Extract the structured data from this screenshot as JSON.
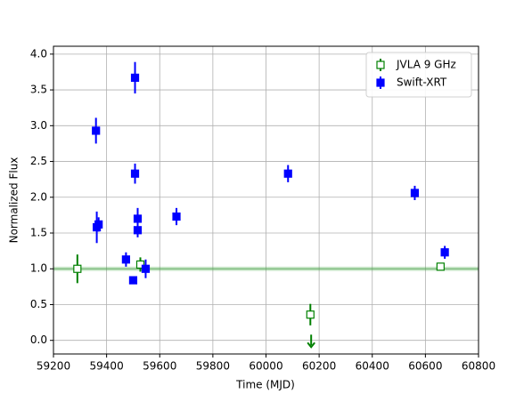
{
  "chart_data": {
    "type": "errorbar-scatter",
    "xlabel": "Time (MJD)",
    "ylabel": "Normalized Flux",
    "xlim": [
      59200,
      60800
    ],
    "ylim": [
      -0.19,
      4.11
    ],
    "xticks": [
      59200,
      59400,
      59600,
      59800,
      60000,
      60200,
      60400,
      60600,
      60800
    ],
    "yticks": [
      {
        "value": 0,
        "label": "0.0"
      },
      {
        "value": 0.5,
        "label": "0.5"
      },
      {
        "value": 1,
        "label": "1.0"
      },
      {
        "value": 1.5,
        "label": "1.5"
      },
      {
        "value": 2,
        "label": "2.0"
      },
      {
        "value": 2.5,
        "label": "2.5"
      },
      {
        "value": 3,
        "label": "3.0"
      },
      {
        "value": 3.5,
        "label": "3.5"
      },
      {
        "value": 4,
        "label": "4.0"
      }
    ],
    "grid": true,
    "legend_position": "upper right",
    "reference_line": 1.0,
    "reference_band": [
      0.97,
      1.03
    ],
    "reference_color": "#2ca02c",
    "series": [
      {
        "name": "JVLA 9 GHz",
        "color": "#008000",
        "marker": "open-square",
        "x": [
          59290,
          59527,
          60167,
          60170,
          60657
        ],
        "values": [
          1.0,
          1.06,
          0.36,
          0.08,
          1.03
        ],
        "errors": [
          0.2,
          0.1,
          0.15,
          0,
          0.05
        ],
        "upper_limit": [
          false,
          false,
          false,
          true,
          false
        ]
      },
      {
        "name": "Swift-XRT",
        "color": "#0000ff",
        "marker": "filled-square",
        "x": [
          59360,
          59363,
          59370,
          59473,
          59500,
          59507,
          59507,
          59517,
          59517,
          59547,
          59663,
          60083,
          60560,
          60673
        ],
        "values": [
          2.93,
          1.58,
          1.62,
          1.13,
          0.84,
          3.67,
          2.33,
          1.7,
          1.54,
          1.0,
          1.73,
          2.33,
          2.06,
          1.23
        ],
        "errors": [
          0.18,
          0.22,
          0.1,
          0.1,
          0.05,
          0.22,
          0.14,
          0.15,
          0.1,
          0.13,
          0.12,
          0.12,
          0.1,
          0.09
        ]
      }
    ]
  }
}
